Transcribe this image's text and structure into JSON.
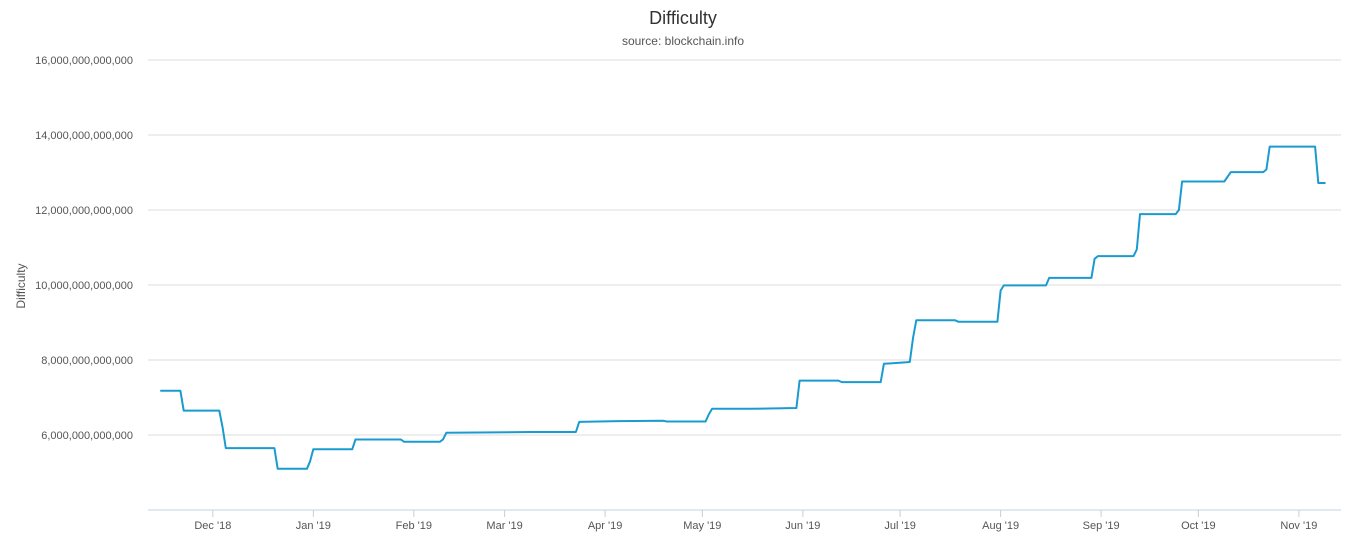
{
  "chart_data": {
    "type": "line",
    "title": "Difficulty",
    "subtitle": "source: blockchain.info",
    "ylabel": "Difficulty",
    "xlabel": "",
    "ylim": [
      4000000000000,
      16000000000000
    ],
    "xlim": [
      "2018-11-11",
      "2019-11-14"
    ],
    "grid": true,
    "color": "#1a9bd0",
    "y_ticks": [
      {
        "value": 6000000000000,
        "label": "6,000,000,000,000"
      },
      {
        "value": 8000000000000,
        "label": "8,000,000,000,000"
      },
      {
        "value": 10000000000000,
        "label": "10,000,000,000,000"
      },
      {
        "value": 12000000000000,
        "label": "12,000,000,000,000"
      },
      {
        "value": 14000000000000,
        "label": "14,000,000,000,000"
      },
      {
        "value": 16000000000000,
        "label": "16,000,000,000,000"
      }
    ],
    "x_ticks": [
      {
        "date": "2018-12-01",
        "label": "Dec '18"
      },
      {
        "date": "2019-01-01",
        "label": "Jan '19"
      },
      {
        "date": "2019-02-01",
        "label": "Feb '19"
      },
      {
        "date": "2019-03-01",
        "label": "Mar '19"
      },
      {
        "date": "2019-04-01",
        "label": "Apr '19"
      },
      {
        "date": "2019-05-01",
        "label": "May '19"
      },
      {
        "date": "2019-06-01",
        "label": "Jun '19"
      },
      {
        "date": "2019-07-01",
        "label": "Jul '19"
      },
      {
        "date": "2019-08-01",
        "label": "Aug '19"
      },
      {
        "date": "2019-09-01",
        "label": "Sep '19"
      },
      {
        "date": "2019-10-01",
        "label": "Oct '19"
      },
      {
        "date": "2019-11-01",
        "label": "Nov '19"
      }
    ],
    "series": [
      {
        "x": [
          "2018-11-15",
          "2018-11-20",
          "2018-11-21",
          "2018-11-22",
          "2018-12-03",
          "2018-12-04",
          "2018-12-05",
          "2018-12-20",
          "2018-12-21",
          "2018-12-30",
          "2018-12-31",
          "2019-01-01",
          "2019-01-13",
          "2019-01-14",
          "2019-01-28",
          "2019-01-29",
          "2019-02-09",
          "2019-02-10",
          "2019-02-11",
          "2019-03-09",
          "2019-03-23",
          "2019-03-24",
          "2019-04-05",
          "2019-04-19",
          "2019-04-20",
          "2019-05-02",
          "2019-05-03",
          "2019-05-04",
          "2019-05-16",
          "2019-05-30",
          "2019-05-31",
          "2019-06-12",
          "2019-06-13",
          "2019-06-25",
          "2019-06-26",
          "2019-07-03",
          "2019-07-04",
          "2019-07-05",
          "2019-07-06",
          "2019-07-18",
          "2019-07-19",
          "2019-07-31",
          "2019-08-01",
          "2019-08-02",
          "2019-08-15",
          "2019-08-16",
          "2019-08-29",
          "2019-08-30",
          "2019-08-31",
          "2019-09-11",
          "2019-09-12",
          "2019-09-13",
          "2019-09-24",
          "2019-09-25",
          "2019-09-26",
          "2019-10-09",
          "2019-10-11",
          "2019-10-21",
          "2019-10-22",
          "2019-10-23",
          "2019-11-06",
          "2019-11-07",
          "2019-11-09"
        ],
        "values": [
          7180000000000,
          7180000000000,
          7180000000000,
          6650000000000,
          6650000000000,
          6200000000000,
          5650000000000,
          5650000000000,
          5100000000000,
          5100000000000,
          5300000000000,
          5620000000000,
          5620000000000,
          5880000000000,
          5880000000000,
          5820000000000,
          5820000000000,
          5880000000000,
          6060000000000,
          6080000000000,
          6080000000000,
          6350000000000,
          6370000000000,
          6380000000000,
          6360000000000,
          6360000000000,
          6550000000000,
          6700000000000,
          6700000000000,
          6720000000000,
          7450000000000,
          7450000000000,
          7410000000000,
          7410000000000,
          7900000000000,
          7940000000000,
          7950000000000,
          8600000000000,
          9060000000000,
          9060000000000,
          9020000000000,
          9020000000000,
          9850000000000,
          9990000000000,
          9990000000000,
          10190000000000,
          10190000000000,
          10700000000000,
          10770000000000,
          10770000000000,
          10950000000000,
          11890000000000,
          11890000000000,
          12000000000000,
          12760000000000,
          12760000000000,
          13010000000000,
          13010000000000,
          13080000000000,
          13690000000000,
          13690000000000,
          12720000000000,
          12720000000000
        ]
      }
    ]
  }
}
